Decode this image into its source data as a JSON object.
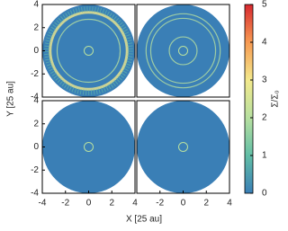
{
  "chart_data": {
    "type": "heatmap",
    "xlabel": "X [25 au]",
    "ylabel": "Y [25 au]",
    "xlim": [
      -4,
      4
    ],
    "ylim": [
      -4,
      4
    ],
    "yticks": [
      -4,
      -2,
      0,
      2,
      4
    ],
    "xticks": [
      [
        -4,
        -2,
        0,
        2,
        4
      ],
      [
        -2,
        0,
        2,
        4
      ]
    ],
    "colorbar": {
      "label": "Σ/Σ₀",
      "lim": [
        0,
        5
      ],
      "ticks": [
        0,
        1,
        2,
        3,
        4,
        5
      ],
      "colors": [
        "#3a7fb6",
        "#62bea6",
        "#b7e0a0",
        "#f3e98c",
        "#f79a52",
        "#d7282f"
      ]
    }
  }
}
